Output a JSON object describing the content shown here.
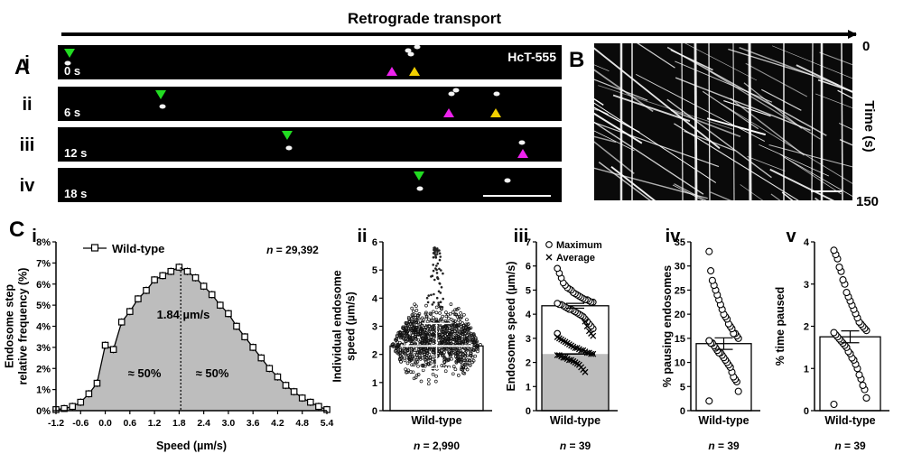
{
  "header": {
    "title": "Retrograde transport",
    "kymo_top": "0",
    "kymo_bottom": "150",
    "kymo_axis": "Time (s)"
  },
  "panel_A": {
    "label": "A",
    "probe": "HcT-555",
    "rows": [
      {
        "roman": "i",
        "time": "0 s"
      },
      {
        "roman": "ii",
        "time": "6 s"
      },
      {
        "roman": "iii",
        "time": "12 s"
      },
      {
        "roman": "iv",
        "time": "18 s"
      }
    ]
  },
  "panel_B": {
    "label": "B"
  },
  "panel_C": {
    "label": "C"
  },
  "colors": {
    "green": "#22dd22",
    "magenta": "#ee22ee",
    "yellow": "#f2d000",
    "fill_gray": "#bdbdbd"
  },
  "chart_data": [
    {
      "id": "Ci",
      "type": "line",
      "roman": "i",
      "xlabel": "Speed (µm/s)",
      "ylabel_lines": [
        "Endosome step",
        "relative frequency (%)"
      ],
      "legend": "Wild-type",
      "n": "29,392",
      "n_prefix": "n = ",
      "annotation": "1.84 µm/s",
      "left_label": "≈ 50%",
      "right_label": "≈ 50%",
      "ylim": [
        0,
        8
      ],
      "yticks": [
        "0%",
        "1%",
        "2%",
        "3%",
        "4%",
        "5%",
        "6%",
        "7%",
        "8%"
      ],
      "xticks": [
        "-1.2",
        "-0.6",
        "0.0",
        "0.6",
        "1.2",
        "1.8",
        "2.4",
        "3.0",
        "3.6",
        "4.2",
        "4.8",
        "5.4"
      ],
      "median": 1.84,
      "x": [
        -1.2,
        -1.0,
        -0.8,
        -0.6,
        -0.4,
        -0.2,
        0.0,
        0.2,
        0.4,
        0.6,
        0.8,
        1.0,
        1.2,
        1.4,
        1.6,
        1.8,
        2.0,
        2.2,
        2.4,
        2.6,
        2.8,
        3.0,
        3.2,
        3.4,
        3.6,
        3.8,
        4.0,
        4.2,
        4.4,
        4.6,
        4.8,
        5.0,
        5.2,
        5.4
      ],
      "values": [
        0.05,
        0.1,
        0.2,
        0.4,
        0.8,
        1.3,
        3.1,
        2.9,
        4.2,
        4.7,
        5.3,
        5.7,
        6.2,
        6.4,
        6.6,
        6.8,
        6.6,
        6.3,
        5.9,
        5.5,
        5.0,
        4.6,
        4.0,
        3.5,
        3.0,
        2.5,
        2.0,
        1.6,
        1.2,
        0.9,
        0.6,
        0.4,
        0.2,
        0.05
      ]
    },
    {
      "id": "Cii",
      "type": "scatter",
      "roman": "ii",
      "ylabel_lines": [
        "Individual endosome",
        "speed (µm/s)"
      ],
      "category": "Wild-type",
      "n": "2,990",
      "n_prefix": "n = ",
      "ylim": [
        0,
        6
      ],
      "yticks": [
        "0",
        "1",
        "2",
        "3",
        "4",
        "5",
        "6"
      ],
      "mean": 2.3,
      "whisker_low": 1.5,
      "whisker_high": 3.1,
      "bulk_min": 0.9,
      "bulk_max": 3.6
    },
    {
      "id": "Ciii",
      "type": "scatter",
      "roman": "iii",
      "ylabel_lines": [
        "Endosome speed (µm/s)"
      ],
      "category": "Wild-type",
      "n": "39",
      "n_prefix": "n = ",
      "legend": [
        "Maximum",
        "Average"
      ],
      "ylim": [
        0,
        7
      ],
      "yticks": [
        "0",
        "1",
        "2",
        "3",
        "4",
        "5",
        "6",
        "7"
      ],
      "max_mean": 4.35,
      "avg_mean": 2.35,
      "maximum": [
        3.2,
        3.4,
        3.5,
        3.6,
        3.7,
        3.8,
        3.9,
        3.95,
        4.0,
        4.05,
        4.1,
        4.15,
        4.2,
        4.2,
        4.25,
        4.3,
        4.35,
        4.4,
        4.4,
        4.45,
        4.5,
        4.5,
        4.55,
        4.6,
        4.6,
        4.65,
        4.7,
        4.75,
        4.8,
        4.85,
        4.9,
        5.0,
        5.05,
        5.1,
        5.2,
        5.3,
        5.5,
        5.7,
        5.9
      ],
      "average": [
        1.6,
        1.7,
        1.8,
        1.9,
        1.95,
        2.0,
        2.05,
        2.1,
        2.1,
        2.15,
        2.2,
        2.2,
        2.25,
        2.3,
        2.3,
        2.35,
        2.35,
        2.4,
        2.4,
        2.45,
        2.5,
        2.5,
        2.55,
        2.6,
        2.6,
        2.65,
        2.7,
        2.75,
        2.8,
        2.85,
        2.9,
        2.95,
        3.0,
        3.05,
        3.1,
        3.2,
        3.3,
        3.5,
        3.7
      ]
    },
    {
      "id": "Civ",
      "type": "scatter",
      "roman": "iv",
      "ylabel_lines": [
        "% pausing endosomes"
      ],
      "category": "Wild-type",
      "n": "39",
      "n_prefix": "n = ",
      "ylim": [
        0,
        35
      ],
      "yticks": [
        "0",
        "5",
        "10",
        "15",
        "20",
        "25",
        "30",
        "35"
      ],
      "mean": 13.9,
      "sem": 1.2,
      "values": [
        2,
        4,
        6,
        6.5,
        7,
        8,
        9,
        9.5,
        10,
        10.5,
        11,
        11.5,
        12,
        12,
        12.5,
        13,
        13.5,
        14,
        14,
        14.5,
        15,
        15.5,
        16,
        16,
        17,
        17.5,
        18,
        19,
        19.5,
        20,
        21,
        22,
        23,
        24,
        25,
        26,
        27,
        29,
        33
      ]
    },
    {
      "id": "Cv",
      "type": "scatter",
      "roman": "v",
      "ylabel_lines": [
        "% time paused"
      ],
      "category": "Wild-type",
      "n": "39",
      "n_prefix": "n = ",
      "ylim": [
        0,
        4
      ],
      "yticks": [
        "0",
        "1",
        "2",
        "3",
        "4"
      ],
      "mean": 1.75,
      "sem": 0.14,
      "values": [
        0.15,
        0.3,
        0.5,
        0.6,
        0.75,
        0.85,
        1.0,
        1.1,
        1.2,
        1.25,
        1.35,
        1.4,
        1.5,
        1.55,
        1.6,
        1.65,
        1.7,
        1.75,
        1.8,
        1.85,
        1.9,
        1.95,
        2.0,
        2.05,
        2.1,
        2.2,
        2.3,
        2.4,
        2.5,
        2.6,
        2.7,
        2.8,
        3.0,
        3.1,
        3.3,
        3.4,
        3.6,
        3.7,
        3.8
      ]
    }
  ]
}
